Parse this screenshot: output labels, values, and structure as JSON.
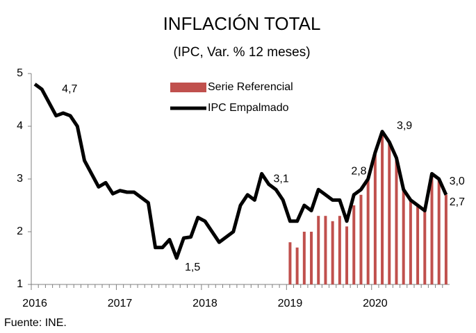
{
  "chart_data": {
    "type": "bar-line",
    "title": "INFLACIÓN TOTAL",
    "subtitle": "(IPC, Var. % 12 meses)",
    "source": "Fuente: INE.",
    "categories": [
      "2016",
      null,
      null,
      null,
      null,
      null,
      null,
      null,
      null,
      null,
      null,
      null,
      "2017",
      null,
      null,
      null,
      null,
      null,
      null,
      null,
      null,
      null,
      null,
      null,
      "2018",
      null,
      null,
      null,
      null,
      null,
      null,
      null,
      null,
      null,
      null,
      null,
      "2019",
      null,
      null,
      null,
      null,
      null,
      null,
      null,
      null,
      null,
      null,
      null,
      "2020",
      null,
      null,
      null,
      null,
      null,
      null,
      null,
      null,
      null,
      null
    ],
    "series": [
      {
        "name": "Serie Referencial",
        "type": "bar",
        "color": "#c0504d",
        "values": [
          null,
          null,
          null,
          null,
          null,
          null,
          null,
          null,
          null,
          null,
          null,
          null,
          null,
          null,
          null,
          null,
          null,
          null,
          null,
          null,
          null,
          null,
          null,
          null,
          null,
          null,
          null,
          null,
          null,
          null,
          null,
          null,
          null,
          null,
          null,
          null,
          1.8,
          1.7,
          2.0,
          2.0,
          2.3,
          2.3,
          2.2,
          2.3,
          2.1,
          2.5,
          2.7,
          3.0,
          3.5,
          3.9,
          3.7,
          3.4,
          2.8,
          2.6,
          2.5,
          2.4,
          3.1,
          3.0,
          2.7
        ]
      },
      {
        "name": "IPC Empalmado",
        "type": "line",
        "color": "#000000",
        "values": [
          4.8,
          4.7,
          4.45,
          4.2,
          4.25,
          4.2,
          4.0,
          3.35,
          3.1,
          2.85,
          2.93,
          2.72,
          2.78,
          2.75,
          2.75,
          2.65,
          2.55,
          1.7,
          1.7,
          1.85,
          1.5,
          1.88,
          1.9,
          2.27,
          2.2,
          2.0,
          1.8,
          1.9,
          2.0,
          2.5,
          2.7,
          2.6,
          3.1,
          2.9,
          2.8,
          2.6,
          2.2,
          2.2,
          2.5,
          2.4,
          2.8,
          2.7,
          2.6,
          2.6,
          2.2,
          2.7,
          2.8,
          3.0,
          3.5,
          3.9,
          3.7,
          3.4,
          2.8,
          2.6,
          2.5,
          2.4,
          3.1,
          3.0,
          2.7
        ],
        "value_labels": [
          null,
          "4,7",
          null,
          null,
          null,
          null,
          null,
          null,
          null,
          null,
          null,
          null,
          null,
          null,
          null,
          null,
          null,
          null,
          null,
          null,
          "1,5",
          null,
          null,
          null,
          null,
          null,
          null,
          null,
          null,
          null,
          null,
          null,
          "3,1",
          null,
          null,
          null,
          null,
          null,
          null,
          null,
          null,
          null,
          null,
          null,
          null,
          null,
          "2,8",
          null,
          null,
          "3,9",
          null,
          null,
          null,
          null,
          null,
          null,
          null,
          "3,0",
          "2,7"
        ]
      }
    ],
    "ylim": [
      1,
      5
    ],
    "yticks": [
      1,
      2,
      3,
      4,
      5
    ],
    "grid": false,
    "legend": "top"
  }
}
